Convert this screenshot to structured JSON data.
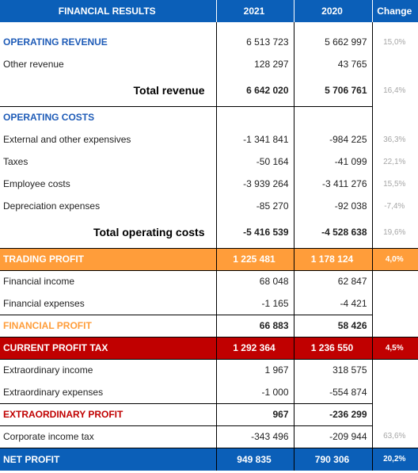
{
  "header": {
    "title": "FINANCIAL RESULTS",
    "col2021": "2021",
    "col2020": "2020",
    "colChange": "Change"
  },
  "operating_revenue": {
    "title": "OPERATING REVENUE",
    "v2021": "6 513 723",
    "v2020": "5 662 997",
    "change": "15,0%"
  },
  "other_revenue": {
    "label": "Other revenue",
    "v2021": "128 297",
    "v2020": "43 765"
  },
  "total_revenue": {
    "label": "Total revenue",
    "v2021": "6 642 020",
    "v2020": "5 706 761",
    "change": "16,4%"
  },
  "operating_costs": {
    "title": "OPERATING COSTS",
    "rows": [
      {
        "label": "External and other expensives",
        "v2021": "-1 341 841",
        "v2020": "-984 225",
        "change": "36,3%"
      },
      {
        "label": "Taxes",
        "v2021": "-50 164",
        "v2020": "-41 099",
        "change": "22,1%"
      },
      {
        "label": "Employee costs",
        "v2021": "-3 939 264",
        "v2020": "-3 411 276",
        "change": "15,5%"
      },
      {
        "label": "Depreciation expenses",
        "v2021": "-85 270",
        "v2020": "-92 038",
        "change": "-7,4%"
      }
    ]
  },
  "total_operating_costs": {
    "label": "Total operating costs",
    "v2021": "-5 416 539",
    "v2020": "-4 528 638",
    "change": "19,6%"
  },
  "trading_profit": {
    "label": "TRADING PROFIT",
    "v2021": "1 225 481",
    "v2020": "1 178 124",
    "change": "4,0%"
  },
  "financial": {
    "rows": [
      {
        "label": "Financial income",
        "v2021": "68 048",
        "v2020": "62 847"
      },
      {
        "label": "Financial expenses",
        "v2021": "-1 165",
        "v2020": "-4 421"
      }
    ],
    "profit": {
      "label": "FINANCIAL PROFIT",
      "v2021": "66 883",
      "v2020": "58 426"
    }
  },
  "current_profit_tax": {
    "label": "CURRENT PROFIT TAX",
    "v2021": "1 292 364",
    "v2020": "1 236 550",
    "change": "4,5%"
  },
  "extraordinary": {
    "rows": [
      {
        "label": "Extraordinary income",
        "v2021": "1 967",
        "v2020": "318 575"
      },
      {
        "label": "Extraordinary expenses",
        "v2021": "-1 000",
        "v2020": "-554 874"
      }
    ],
    "profit": {
      "label": "EXTRAORDINARY PROFIT",
      "v2021": "967",
      "v2020": "-236 299"
    }
  },
  "corporate_tax": {
    "label": "Corporate income tax",
    "v2021": "-343 496",
    "v2020": "-209 944",
    "change": "63,6%"
  },
  "net_profit": {
    "label": "NET PROFIT",
    "v2021": "949 835",
    "v2020": "790 306",
    "change": "20,2%"
  },
  "colors": {
    "header_blue": "#0b5fb8",
    "section_blue": "#1e5bb7",
    "orange": "#ff9d3a",
    "red": "#c00000",
    "muted": "#a6a6a6"
  }
}
